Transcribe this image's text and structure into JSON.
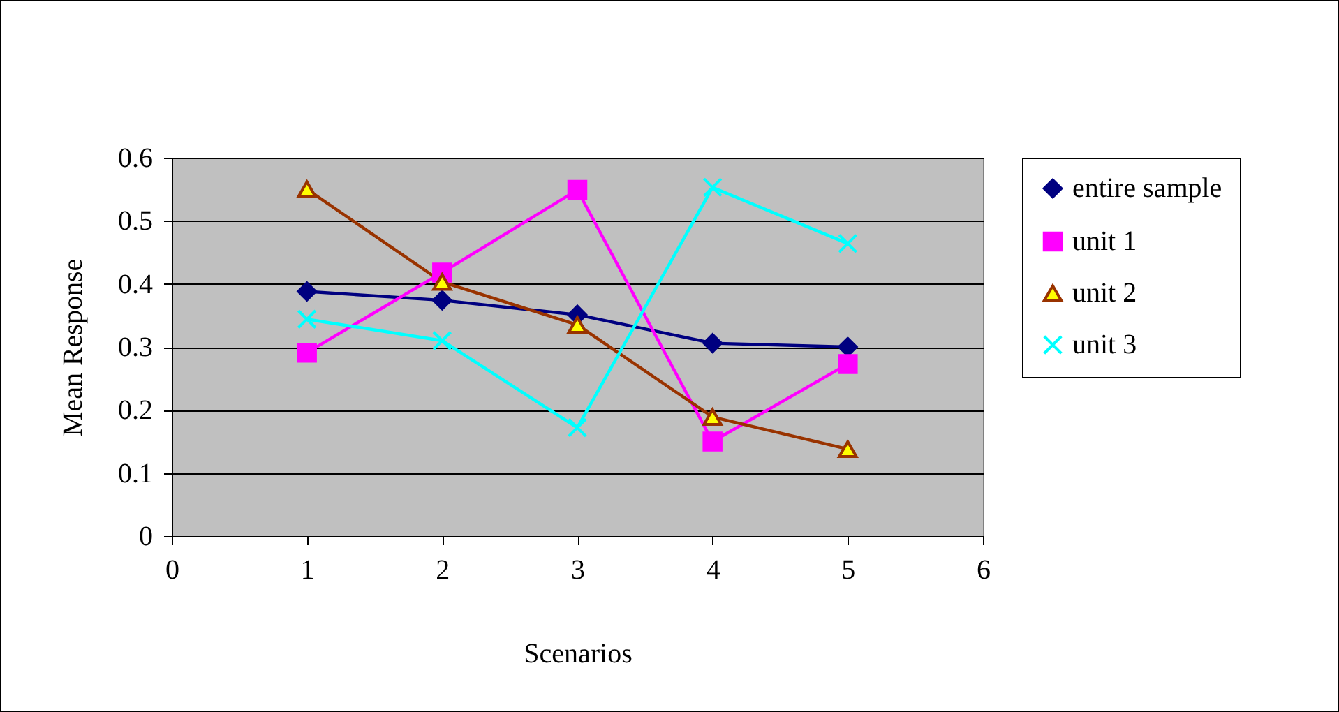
{
  "chart_data": {
    "type": "line",
    "xlabel": "Scenarios",
    "ylabel": "Mean  Response",
    "x": [
      1,
      2,
      3,
      4,
      5
    ],
    "series": [
      {
        "name": "entire sample",
        "color": "#000080",
        "marker": "diamond",
        "values": [
          0.388,
          0.374,
          0.351,
          0.306,
          0.3
        ]
      },
      {
        "name": "unit 1",
        "color": "#ff00ff",
        "marker": "square",
        "values": [
          0.291,
          0.418,
          0.549,
          0.15,
          0.273
        ]
      },
      {
        "name": "unit 2",
        "color": "#993300",
        "marker": "triangle",
        "values": [
          0.55,
          0.403,
          0.335,
          0.189,
          0.138
        ]
      },
      {
        "name": "unit 3",
        "color": "#00ffff",
        "marker": "cross",
        "values": [
          0.344,
          0.31,
          0.172,
          0.553,
          0.464
        ]
      }
    ],
    "xlim": [
      0,
      6
    ],
    "xticks": [
      0,
      1,
      2,
      3,
      4,
      5,
      6
    ],
    "ylim": [
      0,
      0.6
    ],
    "yticks": [
      0,
      0.1,
      0.2,
      0.3,
      0.4,
      0.5,
      0.6
    ],
    "grid": "y",
    "legend": "right",
    "line_style": "solid"
  }
}
